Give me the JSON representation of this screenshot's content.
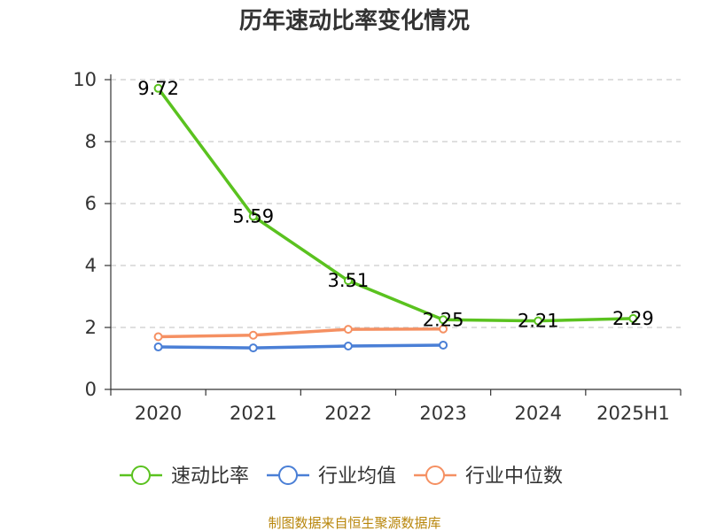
{
  "chart_data": {
    "type": "line",
    "title": "历年速动比率变化情况",
    "categories": [
      "2020",
      "2021",
      "2022",
      "2023",
      "2024",
      "2025H1"
    ],
    "y_ticks": [
      "0",
      "2",
      "4",
      "6",
      "8",
      "10"
    ],
    "ylim": [
      0,
      10
    ],
    "grid": true,
    "legend_position": "bottom",
    "series": [
      {
        "name": "速动比率",
        "color": "#5ac21f",
        "values": [
          9.72,
          5.59,
          3.51,
          2.25,
          2.21,
          2.29
        ],
        "labels": [
          "9.72",
          "5.59",
          "3.51",
          "2.25",
          "2.21",
          "2.29"
        ]
      },
      {
        "name": "行业均值",
        "color": "#4a7fd6",
        "values": [
          1.37,
          1.34,
          1.4,
          1.43,
          null,
          null
        ]
      },
      {
        "name": "行业中位数",
        "color": "#f59062",
        "values": [
          1.7,
          1.75,
          1.94,
          1.95,
          null,
          null
        ]
      }
    ]
  },
  "footer": {
    "source": "制图数据来自恒生聚源数据库"
  }
}
